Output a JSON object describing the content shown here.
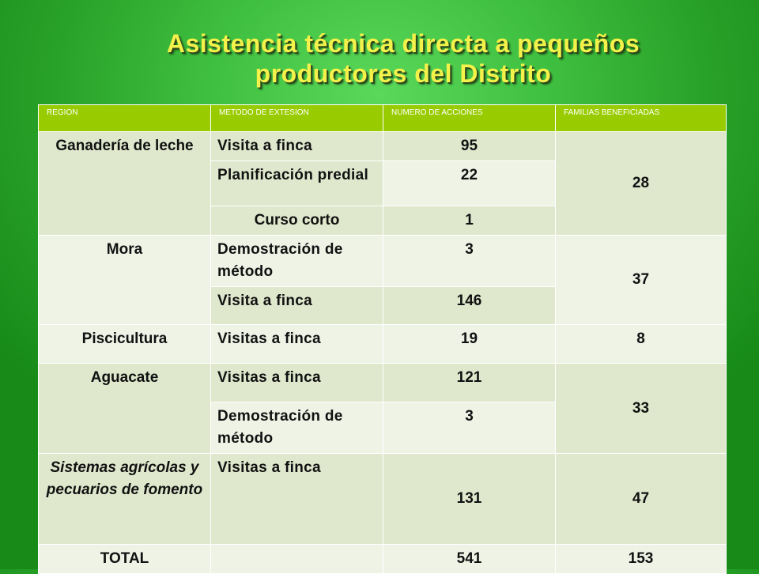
{
  "title": {
    "line1": "Asistencia técnica directa a pequeños",
    "line2": "productores del Distrito"
  },
  "table": {
    "headers": [
      "REGION",
      "METODO DE EXTESION",
      "NUMERO DE ACCIONES",
      "FAMILIAS BENEFICIADAS"
    ],
    "rows": [
      {
        "region": "Ganadería de leche",
        "methods": [
          {
            "metodo": "Visita a finca",
            "acciones": "95"
          },
          {
            "metodo": "Planificación predial",
            "acciones": "22"
          },
          {
            "metodo": "Curso corto",
            "acciones": "1"
          }
        ],
        "familias": "28"
      },
      {
        "region": "Mora",
        "methods": [
          {
            "metodo": "Demostración de método",
            "acciones": "3"
          },
          {
            "metodo": "Visita a finca",
            "acciones": "146"
          }
        ],
        "familias": "37"
      },
      {
        "region": "Piscicultura",
        "methods": [
          {
            "metodo": "Visitas a finca",
            "acciones": "19"
          }
        ],
        "familias": "8"
      },
      {
        "region": "Aguacate",
        "methods": [
          {
            "metodo": "Visitas a finca",
            "acciones": "121"
          },
          {
            "metodo": "Demostración de método",
            "acciones": "3"
          }
        ],
        "familias": "33"
      },
      {
        "region": "Sistemas agrícolas y pecuarios de fomento",
        "methods": [
          {
            "metodo": "Visitas a finca",
            "acciones": "131"
          }
        ],
        "familias": "47"
      }
    ],
    "total": {
      "label": "TOTAL",
      "acciones": "541",
      "familias": "153"
    }
  },
  "colors": {
    "header_bg": "#99cc00",
    "row_dark": "#dfe8cd",
    "row_light": "#eef3e6",
    "title_color": "#f4f24a"
  }
}
